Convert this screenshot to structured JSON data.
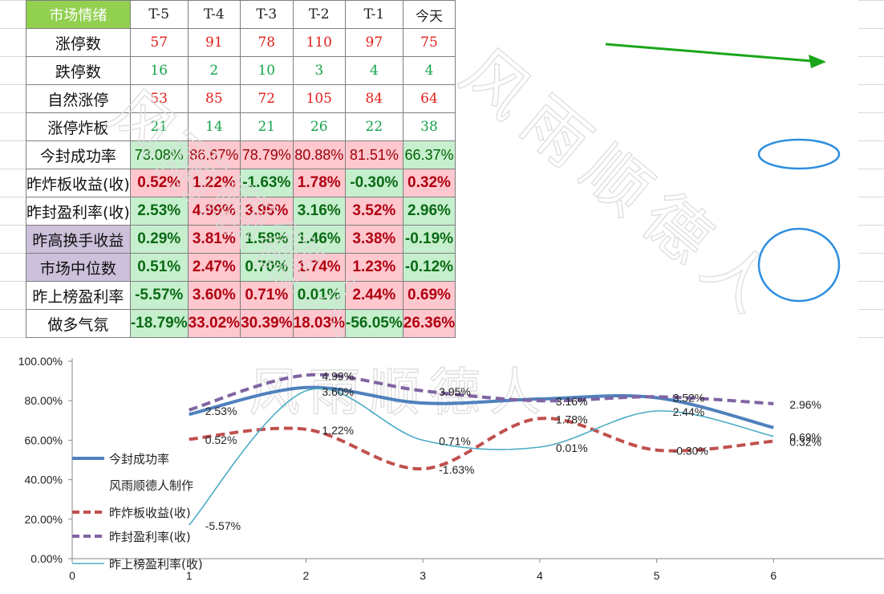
{
  "table": {
    "header": [
      "市场情绪",
      "T-5",
      "T-4",
      "T-3",
      "T-2",
      "T-1",
      "今天"
    ],
    "rows": [
      {
        "label": "涨停数",
        "kind": "int",
        "color": "red",
        "values": [
          "57",
          "91",
          "78",
          "110",
          "97",
          "75"
        ]
      },
      {
        "label": "跌停数",
        "kind": "int",
        "color": "green",
        "values": [
          "16",
          "2",
          "10",
          "3",
          "4",
          "4"
        ]
      },
      {
        "label": "自然涨停",
        "kind": "int",
        "color": "red",
        "values": [
          "53",
          "85",
          "72",
          "105",
          "84",
          "64"
        ]
      },
      {
        "label": "涨停炸板",
        "kind": "int",
        "color": "green",
        "values": [
          "21",
          "14",
          "21",
          "26",
          "22",
          "38"
        ]
      },
      {
        "label": "今封成功率",
        "kind": "pct",
        "values": [
          "73.08%",
          "86.67%",
          "78.79%",
          "80.88%",
          "81.51%",
          "66.37%"
        ],
        "fills": [
          "neg",
          "pos",
          "pos",
          "pos",
          "pos",
          "neg"
        ]
      },
      {
        "label": "昨炸板收益(收)",
        "kind": "pctb",
        "values": [
          "0.52%",
          "1.22%",
          "-1.63%",
          "1.78%",
          "-0.30%",
          "0.32%"
        ],
        "fills": [
          "pos",
          "pos",
          "neg",
          "pos",
          "neg",
          "pos"
        ]
      },
      {
        "label": "昨封盈利率(收)",
        "kind": "pctb",
        "values": [
          "2.53%",
          "4.99%",
          "3.95%",
          "3.16%",
          "3.52%",
          "2.96%"
        ],
        "fills": [
          "neg",
          "pos",
          "pos",
          "neg",
          "pos",
          "neg"
        ]
      },
      {
        "label": "昨高换手收益",
        "kind": "pctb",
        "purple": true,
        "values": [
          "0.29%",
          "3.81%",
          "1.58%",
          "1.46%",
          "3.38%",
          "-0.19%"
        ],
        "fills": [
          "neg",
          "pos",
          "neg",
          "neg",
          "pos",
          "neg"
        ]
      },
      {
        "label": "市场中位数",
        "kind": "pctb",
        "purple": true,
        "values": [
          "0.51%",
          "2.47%",
          "0.70%",
          "1.74%",
          "1.23%",
          "-0.12%"
        ],
        "fills": [
          "neg",
          "pos",
          "neg",
          "pos",
          "pos",
          "neg"
        ]
      },
      {
        "label": "昨上榜盈利率",
        "kind": "pctb",
        "values": [
          "-5.57%",
          "3.60%",
          "0.71%",
          "0.01%",
          "2.44%",
          "0.69%"
        ],
        "fills": [
          "neg",
          "pos",
          "pos",
          "neg",
          "pos",
          "pos"
        ]
      },
      {
        "label": "做多气氛",
        "kind": "pctb",
        "values": [
          "-18.79%",
          "33.02%",
          "30.39%",
          "18.03%",
          "-56.05%",
          "26.36%"
        ],
        "fills": [
          "neg",
          "pos",
          "pos",
          "pos",
          "neg",
          "pos"
        ]
      }
    ]
  },
  "watermark": "风雨顺德人",
  "colors": {
    "header_green": "#92d050",
    "fill_pos": "#ffc7ce",
    "fill_neg": "#c6efce",
    "purple": "#ccc0da",
    "arrow": "#1aa61a",
    "circle": "#2e8fe0"
  },
  "chart_data": {
    "type": "line",
    "x": [
      1,
      2,
      3,
      4,
      5,
      6
    ],
    "xlim": [
      0,
      7
    ],
    "xticks": [
      "0",
      "1",
      "2",
      "3",
      "4",
      "5",
      "6"
    ],
    "ylim": [
      0,
      100
    ],
    "yticks": [
      "0.00%",
      "20.00%",
      "40.00%",
      "60.00%",
      "80.00%",
      "100.00%"
    ],
    "grid": false,
    "legend_position": "left",
    "credit": "风雨顺德人制作",
    "series": [
      {
        "name": "今封成功率",
        "color": "#4f81bd",
        "style": "solid-thick",
        "values": [
          73.08,
          86.67,
          78.79,
          80.88,
          81.51,
          66.37
        ],
        "labels": []
      },
      {
        "name": "昨炸板收益(收)",
        "color": "#c0504d",
        "style": "dashed",
        "values": [
          60.5,
          65.5,
          45.5,
          71,
          55,
          59.5
        ],
        "labels": [
          "0.52%",
          "1.22%",
          "-1.63%",
          "1.78%",
          "-0.30%",
          "0.32%"
        ]
      },
      {
        "name": "昨封盈利率(收)",
        "color": "#8064a2",
        "style": "dashed",
        "values": [
          75.3,
          92.9,
          85,
          80,
          82,
          78.5
        ],
        "labels": [
          "2.53%",
          "4.99%",
          "3.95%",
          "3.16%",
          "3.52%",
          "2.96%"
        ]
      },
      {
        "name": "昨上榜盈利率(收)",
        "color": "#4bacc6",
        "style": "solid-thin",
        "values": [
          17,
          85,
          60,
          56.5,
          74.8,
          62
        ],
        "labels": [
          "-5.57%",
          "3.60%",
          "0.71%",
          "0.01%",
          "2.44%",
          "0.69%"
        ]
      }
    ]
  }
}
